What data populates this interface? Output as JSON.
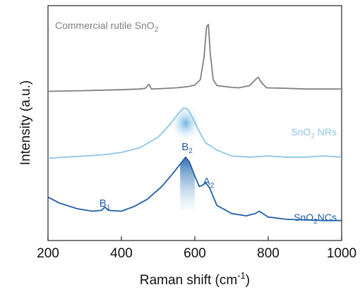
{
  "chart_data": {
    "type": "line",
    "xlabel": {
      "main": "Raman shift (cm",
      "sup": "-1",
      "close": ")"
    },
    "ylabel": "Intensity (a.u.)",
    "xlim": [
      200,
      1000
    ],
    "x_ticks": [
      200,
      400,
      600,
      800,
      1000
    ],
    "y_ticks_shown": false,
    "series": [
      {
        "name": "Commercial rutile SnO2",
        "label": {
          "main": "Commercial rutile SnO",
          "sub": "2"
        },
        "color": "#808080",
        "points": [
          [
            200,
            6.35
          ],
          [
            300,
            6.38
          ],
          [
            400,
            6.42
          ],
          [
            450,
            6.45
          ],
          [
            465,
            6.48
          ],
          [
            475,
            6.65
          ],
          [
            482,
            6.45
          ],
          [
            500,
            6.46
          ],
          [
            550,
            6.5
          ],
          [
            580,
            6.55
          ],
          [
            600,
            6.62
          ],
          [
            615,
            6.85
          ],
          [
            625,
            7.8
          ],
          [
            632,
            9.1
          ],
          [
            637,
            9.2
          ],
          [
            642,
            8.0
          ],
          [
            650,
            6.85
          ],
          [
            660,
            6.6
          ],
          [
            700,
            6.52
          ],
          [
            720,
            6.5
          ],
          [
            750,
            6.6
          ],
          [
            765,
            6.85
          ],
          [
            773,
            6.95
          ],
          [
            780,
            6.75
          ],
          [
            795,
            6.5
          ],
          [
            850,
            6.48
          ],
          [
            900,
            6.45
          ],
          [
            1000,
            6.45
          ]
        ]
      },
      {
        "name": "SnO2 NRs",
        "label": {
          "main": "SnO",
          "sub": "2",
          "rest": " NRs"
        },
        "color": "#8ec5e4",
        "points": [
          [
            200,
            3.5
          ],
          [
            300,
            3.6
          ],
          [
            350,
            3.65
          ],
          [
            400,
            3.75
          ],
          [
            450,
            3.95
          ],
          [
            500,
            4.4
          ],
          [
            530,
            4.9
          ],
          [
            555,
            5.4
          ],
          [
            570,
            5.65
          ],
          [
            580,
            5.6
          ],
          [
            595,
            5.2
          ],
          [
            610,
            4.7
          ],
          [
            630,
            4.15
          ],
          [
            660,
            3.85
          ],
          [
            700,
            3.6
          ],
          [
            750,
            3.55
          ],
          [
            800,
            3.6
          ],
          [
            850,
            3.55
          ],
          [
            900,
            3.55
          ],
          [
            950,
            3.6
          ],
          [
            1000,
            3.55
          ]
        ]
      },
      {
        "name": "SnO2 NCs",
        "label": {
          "main": "SnO",
          "sub": "2",
          "rest": "NCs"
        },
        "color": "#1f5fa8",
        "points": [
          [
            200,
            1.85
          ],
          [
            230,
            1.6
          ],
          [
            280,
            1.35
          ],
          [
            320,
            1.25
          ],
          [
            345,
            1.28
          ],
          [
            355,
            1.42
          ],
          [
            365,
            1.28
          ],
          [
            400,
            1.25
          ],
          [
            435,
            1.45
          ],
          [
            470,
            1.75
          ],
          [
            510,
            2.3
          ],
          [
            540,
            2.85
          ],
          [
            560,
            3.25
          ],
          [
            575,
            3.55
          ],
          [
            585,
            3.35
          ],
          [
            600,
            2.75
          ],
          [
            612,
            2.3
          ],
          [
            620,
            2.35
          ],
          [
            630,
            2.45
          ],
          [
            640,
            2.25
          ],
          [
            660,
            1.5
          ],
          [
            700,
            1.15
          ],
          [
            740,
            1.05
          ],
          [
            765,
            1.15
          ],
          [
            775,
            1.25
          ],
          [
            800,
            1.0
          ],
          [
            850,
            0.9
          ],
          [
            900,
            0.88
          ],
          [
            950,
            0.85
          ],
          [
            1000,
            0.85
          ]
        ]
      }
    ],
    "peak_labels": [
      {
        "letter": "B",
        "sub": "1",
        "x": 355
      },
      {
        "letter": "B",
        "sub": "2",
        "x": 575
      },
      {
        "letter": "A",
        "sub": "2",
        "x": 630
      }
    ]
  }
}
